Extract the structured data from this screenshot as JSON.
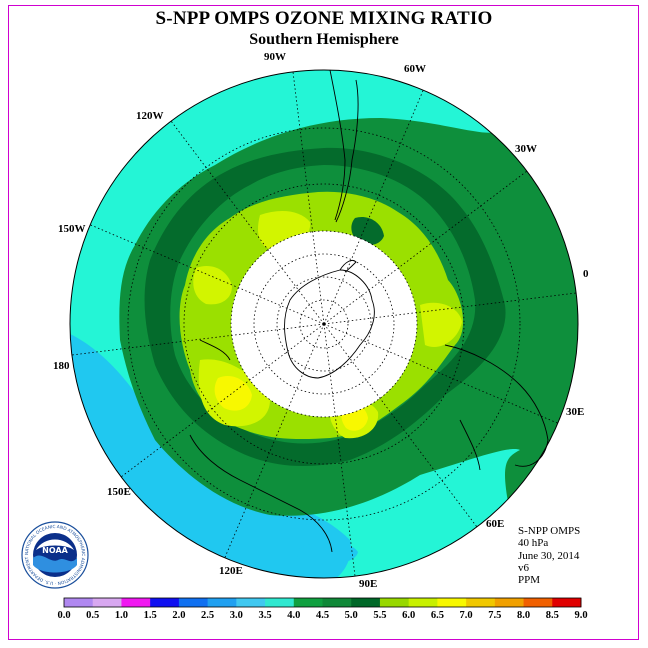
{
  "title": "S-NPP OMPS OZONE MIXING RATIO",
  "subtitle": "Southern Hemisphere",
  "longitude_labels": {
    "lon_90w": "90W",
    "lon_60w": "60W",
    "lon_30w": "30W",
    "lon_0": "0",
    "lon_30e": "30E",
    "lon_60e": "60E",
    "lon_90e": "90E",
    "lon_120e": "120E",
    "lon_150e": "150E",
    "lon_180": "180",
    "lon_150w": "150W",
    "lon_120w": "120W"
  },
  "info": {
    "instrument": "S-NPP OMPS",
    "pressure_level": "40 hPa",
    "date": "June 30, 2014",
    "version": "v6",
    "units": "PPM"
  },
  "logo": {
    "text": "NOAA",
    "ring_text": "NATIONAL OCEANIC AND ATMOSPHERIC ADMINISTRATION · U.S. DEPARTMENT OF COMMERCE"
  },
  "colorbar": {
    "tick_labels": [
      "0.0",
      "0.5",
      "1.0",
      "1.5",
      "2.0",
      "2.5",
      "3.0",
      "3.5",
      "4.0",
      "4.5",
      "5.0",
      "5.5",
      "6.0",
      "6.5",
      "7.0",
      "7.5",
      "8.0",
      "8.5",
      "9.0"
    ],
    "colors": [
      "#b088f0",
      "#d8a8f0",
      "#f018f0",
      "#1010f0",
      "#1070f0",
      "#20a0f0",
      "#40c8f0",
      "#30e8d0",
      "#10a040",
      "#108838",
      "#006828",
      "#98d800",
      "#c8f000",
      "#f8f800",
      "#f0c800",
      "#f0a000",
      "#f06000",
      "#e00000",
      "#905030"
    ]
  },
  "map_colors": {
    "cyan": "#24f5d6",
    "sky": "#20c8f0",
    "green": "#0e8f3c",
    "darkgreen": "#046b2c",
    "lime": "#9be000",
    "yellowgreen": "#d2f500",
    "yellow": "#f8f800",
    "polar_night": "#ffffff"
  }
}
